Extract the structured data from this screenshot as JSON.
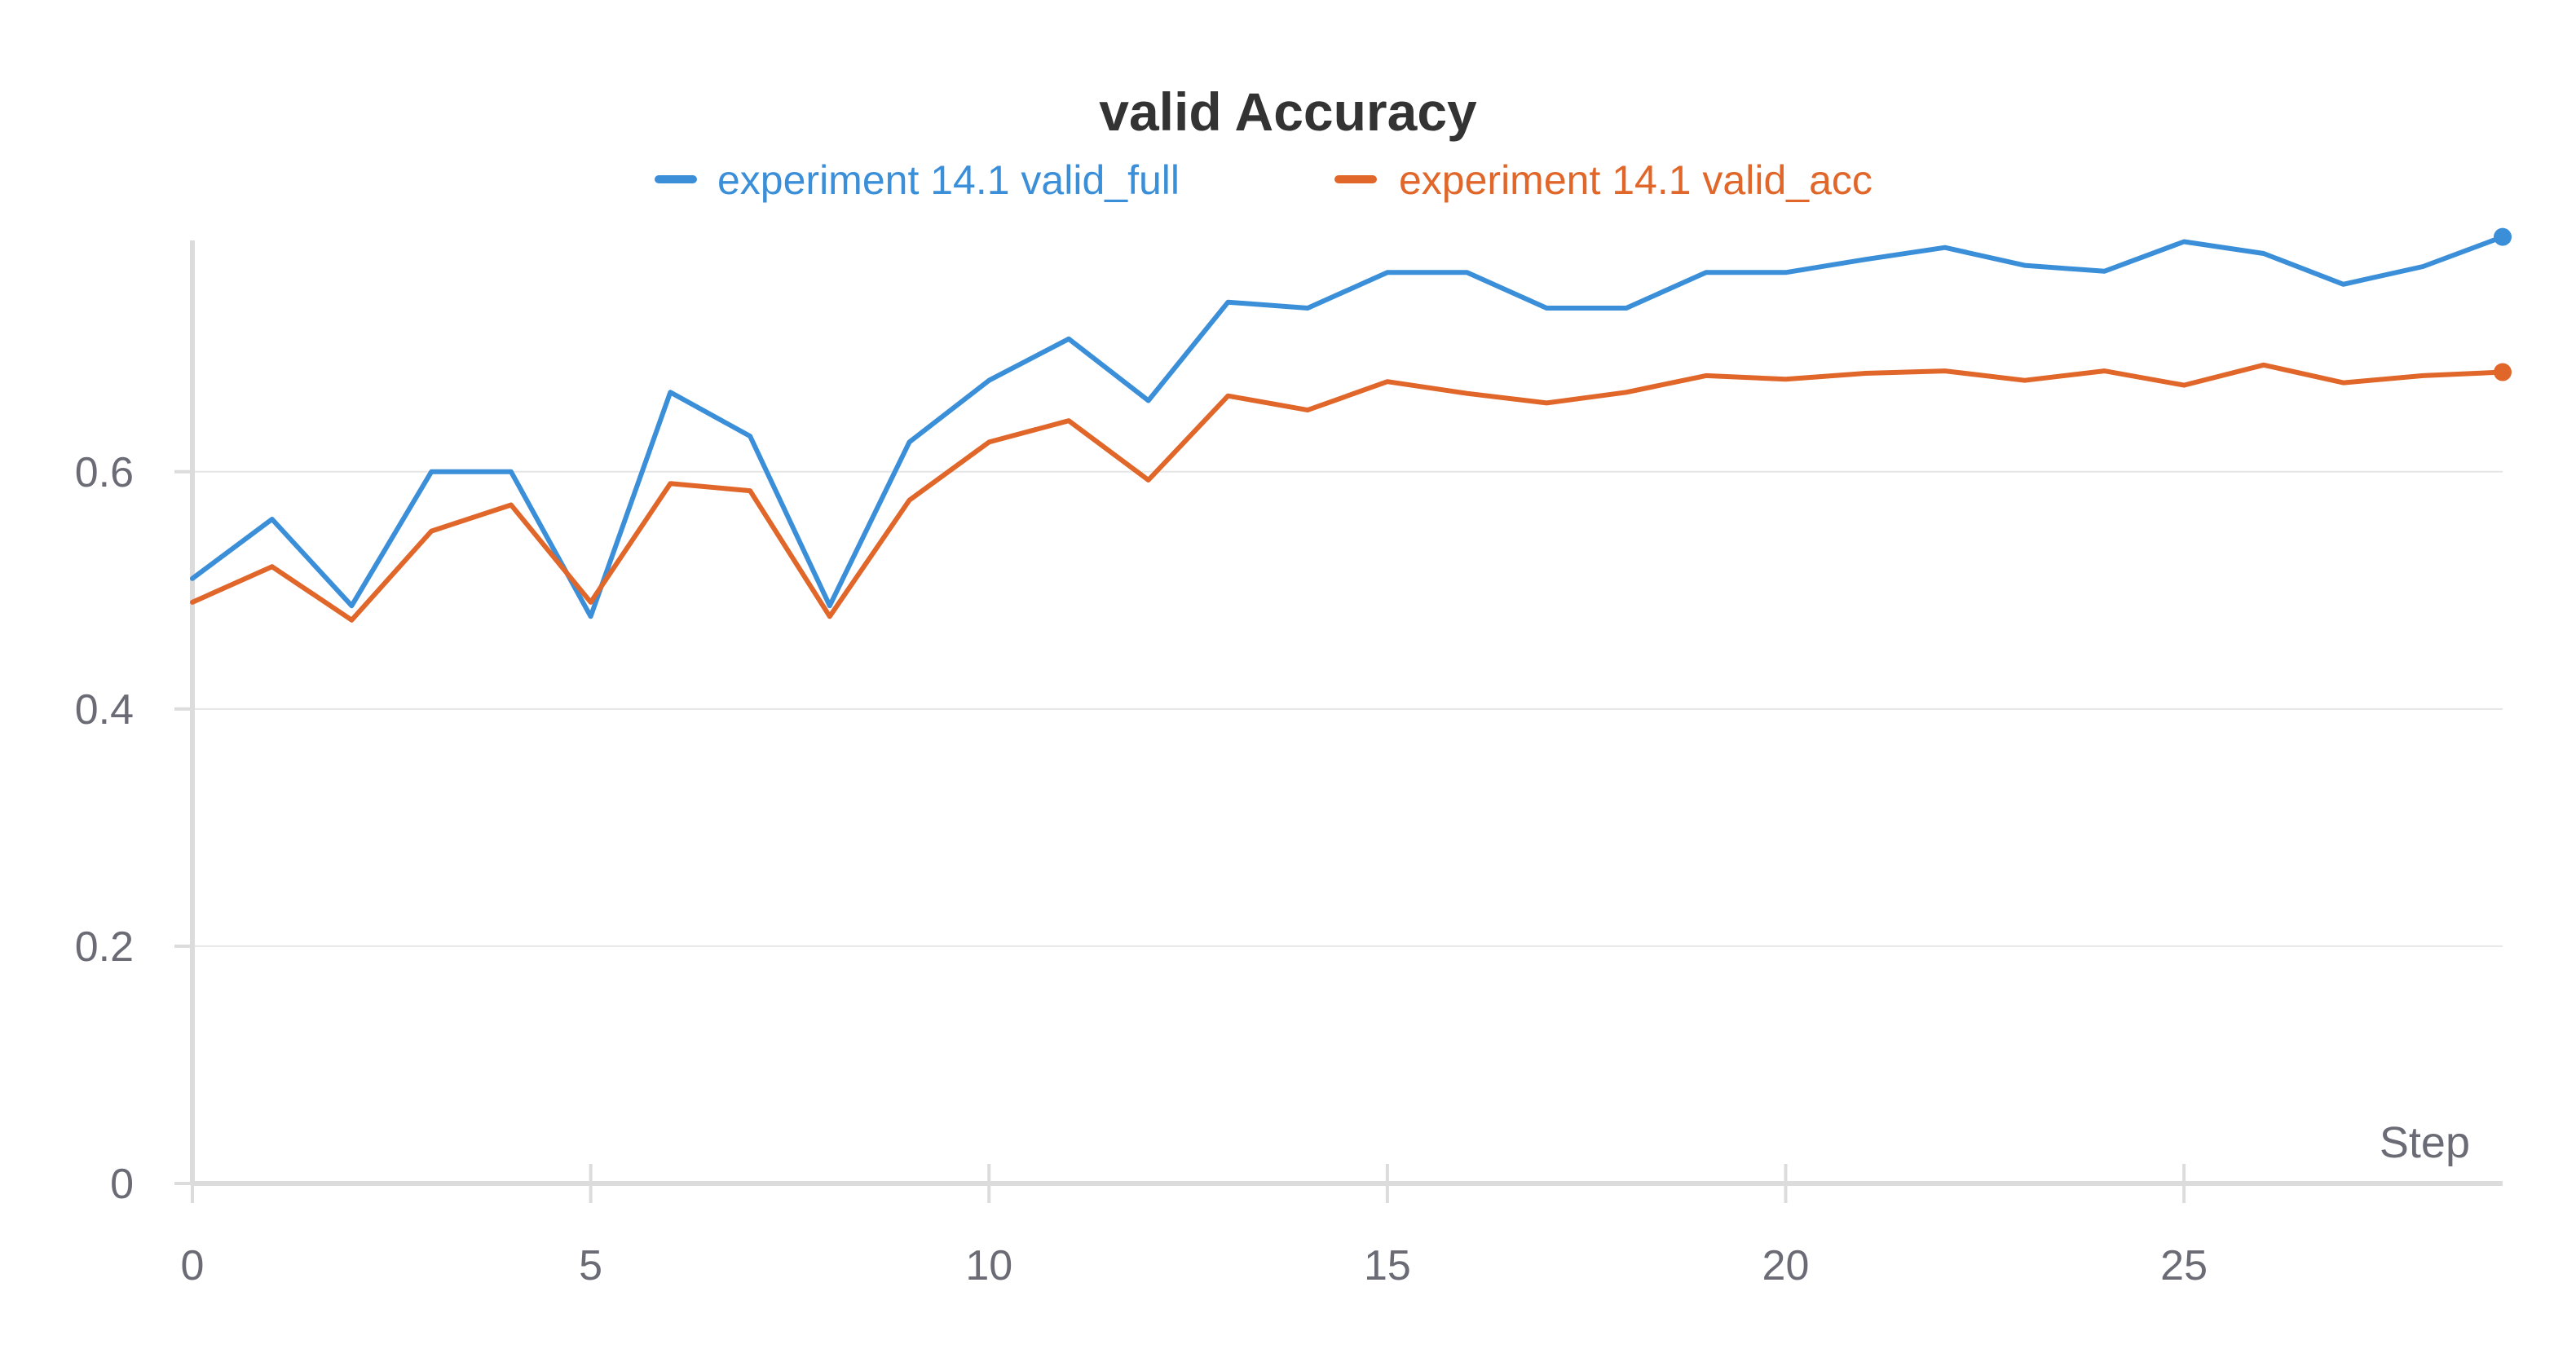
{
  "chart_data": {
    "type": "line",
    "title": "valid Accuracy",
    "xlabel": "Step",
    "ylabel": "",
    "xlim": [
      0,
      29
    ],
    "ylim": [
      0,
      0.795
    ],
    "xticks": [
      0,
      5,
      10,
      15,
      20,
      25
    ],
    "yticks": [
      0,
      0.2,
      0.4,
      0.6
    ],
    "ytick_labels": [
      "0",
      "0.2",
      "0.4",
      "0.6"
    ],
    "grid": true,
    "legend_position": "top-center",
    "x": [
      0,
      1,
      2,
      3,
      4,
      5,
      6,
      7,
      8,
      9,
      10,
      11,
      12,
      13,
      14,
      15,
      16,
      17,
      18,
      19,
      20,
      21,
      22,
      23,
      24,
      25,
      26,
      27,
      28,
      29
    ],
    "series": [
      {
        "name": "experiment 14.1 valid_full",
        "color": "#3b8fd8",
        "values": [
          0.51,
          0.56,
          0.487,
          0.6,
          0.6,
          0.478,
          0.667,
          0.63,
          0.487,
          0.625,
          0.677,
          0.712,
          0.66,
          0.743,
          0.738,
          0.768,
          0.768,
          0.738,
          0.738,
          0.768,
          0.768,
          0.779,
          0.789,
          0.774,
          0.769,
          0.794,
          0.784,
          0.758,
          0.773,
          0.798
        ]
      },
      {
        "name": "experiment 14.1 valid_acc",
        "color": "#e0662a",
        "values": [
          0.49,
          0.52,
          0.475,
          0.55,
          0.572,
          0.49,
          0.59,
          0.584,
          0.478,
          0.576,
          0.625,
          0.643,
          0.593,
          0.664,
          0.652,
          0.676,
          0.666,
          0.658,
          0.667,
          0.681,
          0.678,
          0.683,
          0.685,
          0.677,
          0.685,
          0.673,
          0.69,
          0.675,
          0.681,
          0.684
        ]
      }
    ]
  }
}
